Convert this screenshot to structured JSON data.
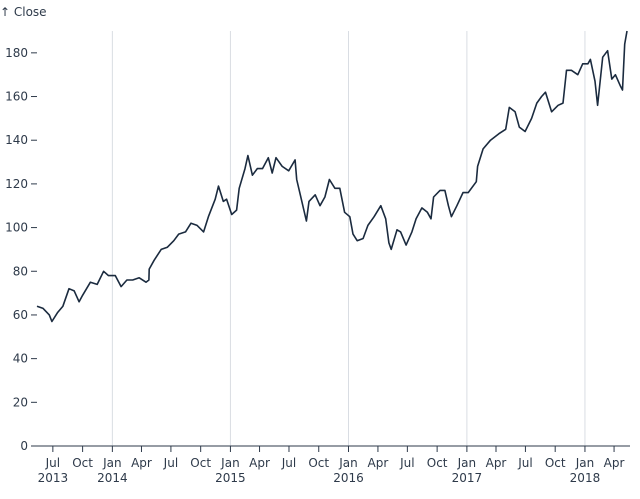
{
  "chart_data": {
    "type": "line",
    "title": "",
    "xlabel": "",
    "ylabel": "↑ Close",
    "ylim": [
      0,
      190
    ],
    "xlim": [
      "2013-05-13",
      "2018-05-11"
    ],
    "grid": "vertical lines at year boundaries",
    "line_color": "#1b2b3f",
    "grid_color": "#d9dde3",
    "y_ticks": [
      0,
      20,
      40,
      60,
      80,
      100,
      120,
      140,
      160,
      180
    ],
    "x_ticks": [
      {
        "date": "2013-07-01",
        "label": "Jul",
        "year": "2013"
      },
      {
        "date": "2013-10-01",
        "label": "Oct",
        "year": ""
      },
      {
        "date": "2014-01-01",
        "label": "Jan",
        "year": "2014"
      },
      {
        "date": "2014-04-01",
        "label": "Apr",
        "year": ""
      },
      {
        "date": "2014-07-01",
        "label": "Jul",
        "year": ""
      },
      {
        "date": "2014-10-01",
        "label": "Oct",
        "year": ""
      },
      {
        "date": "2015-01-01",
        "label": "Jan",
        "year": "2015"
      },
      {
        "date": "2015-04-01",
        "label": "Apr",
        "year": ""
      },
      {
        "date": "2015-07-01",
        "label": "Jul",
        "year": ""
      },
      {
        "date": "2015-10-01",
        "label": "Oct",
        "year": ""
      },
      {
        "date": "2016-01-01",
        "label": "Jan",
        "year": "2016"
      },
      {
        "date": "2016-04-01",
        "label": "Apr",
        "year": ""
      },
      {
        "date": "2016-07-01",
        "label": "Jul",
        "year": ""
      },
      {
        "date": "2016-10-01",
        "label": "Oct",
        "year": ""
      },
      {
        "date": "2017-01-01",
        "label": "Jan",
        "year": "2017"
      },
      {
        "date": "2017-04-01",
        "label": "Apr",
        "year": ""
      },
      {
        "date": "2017-07-01",
        "label": "Jul",
        "year": ""
      },
      {
        "date": "2017-10-01",
        "label": "Oct",
        "year": ""
      },
      {
        "date": "2018-01-01",
        "label": "Jan",
        "year": "2018"
      },
      {
        "date": "2018-04-01",
        "label": "Apr",
        "year": ""
      }
    ],
    "gridlines": [
      "2014-01-01",
      "2015-01-01",
      "2016-01-01",
      "2017-01-01",
      "2018-01-01"
    ],
    "series": [
      {
        "x": [
          "2013-05-13",
          "2013-06-01",
          "2013-06-20",
          "2013-06-28",
          "2013-07-15",
          "2013-08-01",
          "2013-08-20",
          "2013-09-05",
          "2013-09-20",
          "2013-10-01",
          "2013-10-25",
          "2013-11-15",
          "2013-12-05",
          "2013-12-20",
          "2014-01-10",
          "2014-01-28",
          "2014-02-15",
          "2014-03-05",
          "2014-03-25",
          "2014-04-15",
          "2014-04-24",
          "2014-04-25",
          "2014-05-10",
          "2014-06-01",
          "2014-06-20",
          "2014-07-10",
          "2014-07-25",
          "2014-08-15",
          "2014-09-01",
          "2014-09-20",
          "2014-10-10",
          "2014-10-25",
          "2014-11-15",
          "2014-11-25",
          "2014-12-10",
          "2014-12-20",
          "2015-01-05",
          "2015-01-20",
          "2015-01-28",
          "2015-02-15",
          "2015-02-24",
          "2015-03-10",
          "2015-03-25",
          "2015-04-10",
          "2015-04-28",
          "2015-05-10",
          "2015-05-22",
          "2015-06-10",
          "2015-06-30",
          "2015-07-20",
          "2015-07-25",
          "2015-08-05",
          "2015-08-24",
          "2015-09-01",
          "2015-09-20",
          "2015-10-05",
          "2015-10-20",
          "2015-11-03",
          "2015-11-20",
          "2015-12-05",
          "2015-12-20",
          "2016-01-05",
          "2016-01-15",
          "2016-01-28",
          "2016-02-15",
          "2016-03-01",
          "2016-03-20",
          "2016-04-10",
          "2016-04-25",
          "2016-05-05",
          "2016-05-12",
          "2016-05-30",
          "2016-06-10",
          "2016-06-27",
          "2016-07-15",
          "2016-07-28",
          "2016-08-15",
          "2016-09-01",
          "2016-09-12",
          "2016-09-20",
          "2016-10-10",
          "2016-10-25",
          "2016-11-05",
          "2016-11-14",
          "2016-12-01",
          "2016-12-20",
          "2017-01-05",
          "2017-01-30",
          "2017-02-03",
          "2017-02-20",
          "2017-03-15",
          "2017-04-10",
          "2017-05-01",
          "2017-05-12",
          "2017-05-30",
          "2017-06-12",
          "2017-06-30",
          "2017-07-20",
          "2017-08-05",
          "2017-08-20",
          "2017-09-01",
          "2017-09-20",
          "2017-10-10",
          "2017-10-25",
          "2017-11-05",
          "2017-11-20",
          "2017-12-10",
          "2017-12-25",
          "2018-01-10",
          "2018-01-18",
          "2018-02-01",
          "2018-02-09",
          "2018-02-25",
          "2018-03-12",
          "2018-03-25",
          "2018-04-05",
          "2018-04-20",
          "2018-04-27",
          "2018-05-04",
          "2018-05-11"
        ],
        "y": [
          64,
          63,
          60,
          57,
          61,
          64,
          72,
          71,
          66,
          69,
          75,
          74,
          80,
          78,
          78,
          73,
          76,
          76,
          77,
          75,
          76,
          81,
          85,
          90,
          91,
          94,
          97,
          98,
          102,
          101,
          98,
          105,
          113,
          119,
          112,
          113,
          106,
          108,
          118,
          127,
          133,
          124,
          127,
          127,
          132,
          125,
          132,
          128,
          126,
          131,
          122,
          115,
          103,
          112,
          115,
          110,
          114,
          122,
          118,
          118,
          107,
          105,
          97,
          94,
          95,
          101,
          105,
          110,
          104,
          93,
          90,
          99,
          98,
          92,
          98,
          104,
          109,
          107,
          104,
          114,
          117,
          117,
          110,
          105,
          110,
          116,
          116,
          121,
          128,
          136,
          140,
          143,
          145,
          155,
          153,
          146,
          144,
          150,
          157,
          160,
          162,
          153,
          156,
          157,
          172,
          172,
          170,
          175,
          175,
          177,
          167,
          156,
          178,
          181,
          168,
          170,
          165,
          163,
          184,
          190
        ]
      }
    ]
  }
}
